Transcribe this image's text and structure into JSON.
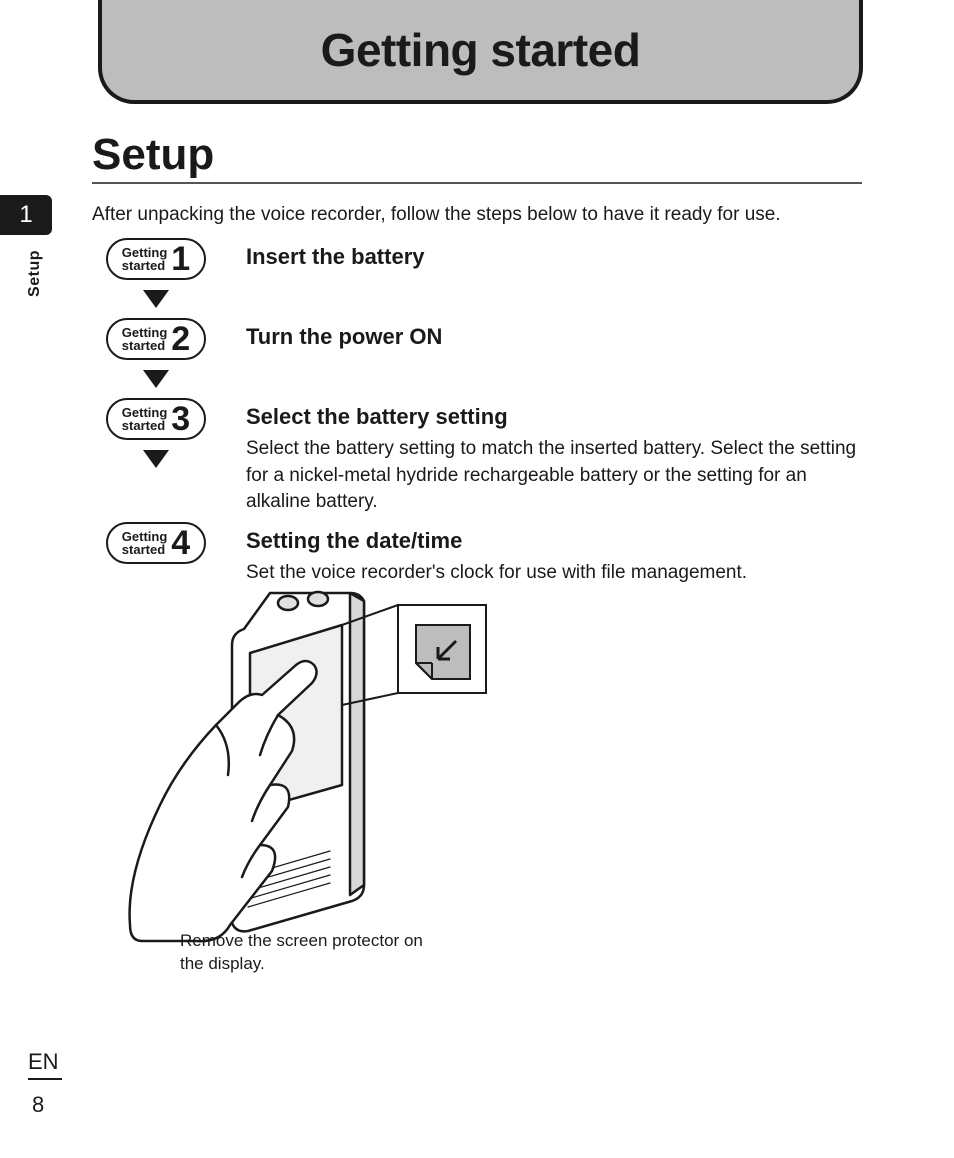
{
  "header": {
    "title": "Getting started"
  },
  "section": {
    "title": "Setup"
  },
  "sidebar": {
    "chapter_number": "1",
    "section_label": "Setup"
  },
  "intro": "After unpacking the voice recorder, follow the steps below to have it ready for use.",
  "steps": [
    {
      "pill_label": "Getting\nstarted",
      "pill_number": "1",
      "title": "Insert the battery",
      "description": "",
      "arrow_after": true
    },
    {
      "pill_label": "Getting\nstarted",
      "pill_number": "2",
      "title": "Turn the power ON",
      "description": "",
      "arrow_after": true
    },
    {
      "pill_label": "Getting\nstarted",
      "pill_number": "3",
      "title": "Select the battery setting",
      "description": "Select the battery setting to match the inserted battery. Select the setting for a nickel-metal hydride rechargeable battery or the setting for an alkaline battery.",
      "arrow_after": true
    },
    {
      "pill_label": "Getting\nstarted",
      "pill_number": "4",
      "title": "Setting the date/time",
      "description": "Set the voice recorder's clock for use with file management.",
      "arrow_after": false
    }
  ],
  "illustration": {
    "caption": "Remove the screen protector on the display.",
    "stroke": "#1a1a1a",
    "fill_light": "#ffffff",
    "fill_grey": "#bdbdbd",
    "stroke_width": 2
  },
  "footer": {
    "language": "EN",
    "page": "8"
  },
  "colors": {
    "header_bg": "#bdbdbd",
    "text": "#1a1a1a",
    "rule": "#555555",
    "page_bg": "#ffffff"
  }
}
